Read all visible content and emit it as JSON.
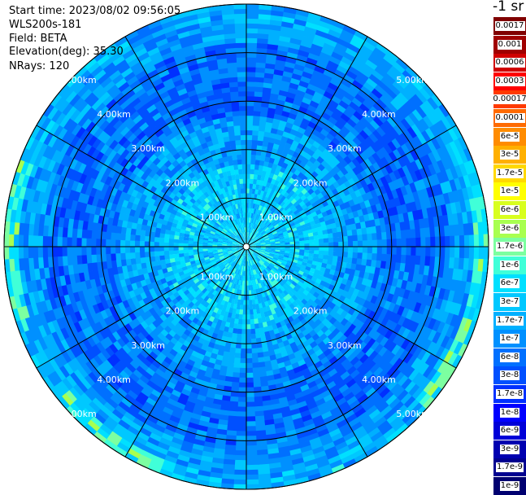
{
  "header": {
    "start_time": "Start time: 2023/08/02 09:56:05",
    "instrument": "WLS200s-181",
    "field": "Field: BETA",
    "elevation": "Elevation(deg): 35.30",
    "nrays": "NRays: 120"
  },
  "units_label": "-1 sr",
  "chart_data": {
    "type": "heatmap",
    "projection": "polar (PPI scan)",
    "field": "BETA",
    "elevation_deg": 35.3,
    "n_rays": 120,
    "range_rings_km": [
      1,
      2,
      3,
      4,
      5
    ],
    "ring_labels": [
      "1.00km",
      "2.00km",
      "3.00km",
      "4.00km",
      "5.00km"
    ],
    "max_range_km": 5.0,
    "spoke_angles_deg": [
      0,
      30,
      60,
      90,
      120,
      150,
      180,
      210,
      240,
      270,
      300,
      330
    ],
    "colorbar": {
      "ticks": [
        "0.0017",
        "0.001",
        "0.0006",
        "0.0003",
        "0.00017",
        "0.0001",
        "6e-5",
        "3e-5",
        "1.7e-5",
        "1e-5",
        "6e-6",
        "3e-6",
        "1.7e-6",
        "1e-6",
        "6e-7",
        "3e-7",
        "1.7e-7",
        "1e-7",
        "6e-8",
        "3e-8",
        "1.7e-8",
        "1e-8",
        "6e-9",
        "3e-9",
        "1.7e-9",
        "1e-9"
      ],
      "colors": [
        "#800000",
        "#a00000",
        "#d00000",
        "#ff0000",
        "#ff3a00",
        "#ff6a00",
        "#ff8c00",
        "#ffb000",
        "#ffd800",
        "#ffff00",
        "#d8ff1e",
        "#a8ff50",
        "#7cffa0",
        "#40ffd8",
        "#00e0ff",
        "#00c8ff",
        "#00b0ff",
        "#0090ff",
        "#0070ff",
        "#0050ff",
        "#0030ff",
        "#0000ff",
        "#0000d8",
        "#0000b0",
        "#000090",
        "#000070"
      ]
    },
    "dominant_values": "mostly 1e-8 to 1e-6; 1e-5 to 6e-6 at outer edge near 5 km"
  }
}
